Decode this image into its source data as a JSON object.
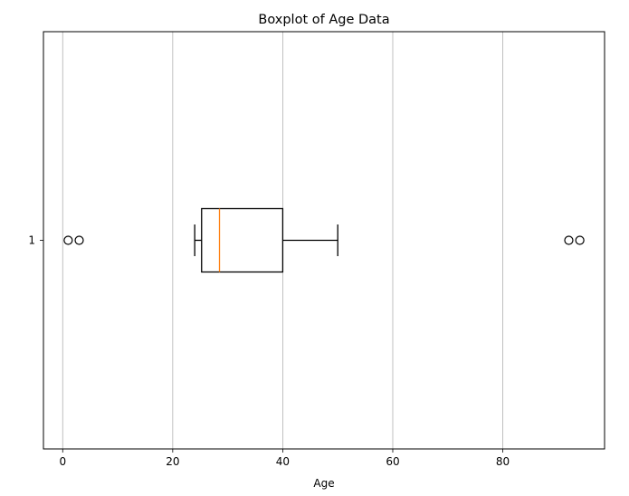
{
  "chart_data": {
    "type": "boxplot",
    "orientation": "horizontal",
    "title": "Boxplot of Age Data",
    "xlabel": "Age",
    "ylabel": "",
    "xlim": [
      -3.5,
      98.5
    ],
    "xticks": [
      0,
      20,
      40,
      60,
      80
    ],
    "yticks": [
      "1"
    ],
    "grid": "x",
    "boxes": [
      {
        "label": "1",
        "whisker_low": 24,
        "q1": 25.25,
        "median": 28.5,
        "q3": 40,
        "whisker_high": 50,
        "outliers": [
          1,
          3,
          92,
          94
        ]
      }
    ],
    "colors": {
      "box": "#000000",
      "median": "#ff7f0e",
      "grid": "#b0b0b0",
      "frame": "#000000"
    }
  }
}
